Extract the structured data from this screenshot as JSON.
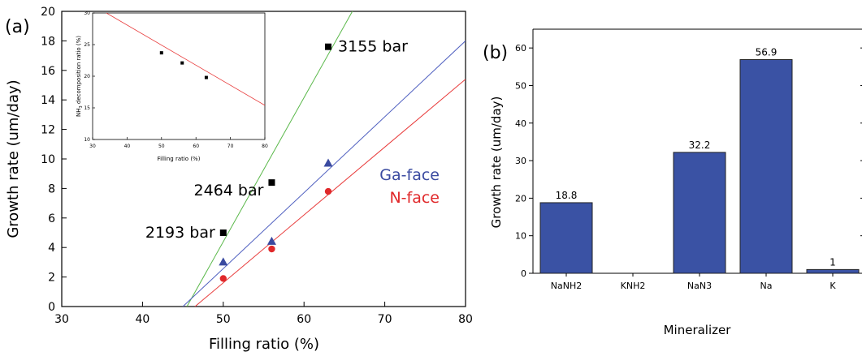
{
  "chart_data": [
    {
      "type": "scatter",
      "panel_label": "(a)",
      "xlabel": "Filling ratio (%)",
      "ylabel": "Growth rate (um/day)",
      "xlim": [
        30,
        80
      ],
      "ylim": [
        0,
        20
      ],
      "xticks": [
        "30",
        "40",
        "50",
        "60",
        "70",
        "80"
      ],
      "yticks": [
        "0",
        "2",
        "4",
        "6",
        "8",
        "10",
        "12",
        "14",
        "16",
        "18",
        "20"
      ],
      "series": [
        {
          "marker": "square",
          "color": "#000000",
          "x": [
            50,
            56,
            63
          ],
          "y": [
            5.0,
            8.4,
            17.6
          ]
        },
        {
          "name": "Ga-face",
          "marker": "triangle",
          "color": "#3a4aa0",
          "x": [
            50,
            56,
            63
          ],
          "y": [
            3.0,
            4.4,
            9.7
          ]
        },
        {
          "name": "N-face",
          "marker": "circle",
          "color": "#e0282a",
          "x": [
            50,
            56,
            63
          ],
          "y": [
            1.9,
            3.9,
            7.8
          ]
        }
      ],
      "fit_lines": [
        {
          "color": "#5ab84a",
          "p1": [
            45.5,
            0
          ],
          "p2": [
            66.5,
            20.5
          ]
        },
        {
          "color": "#5060c0",
          "p1": [
            45.0,
            0
          ],
          "p2": [
            80,
            18.0
          ]
        },
        {
          "color": "#e83a3a",
          "p1": [
            46.5,
            0
          ],
          "p2": [
            80,
            15.4
          ]
        }
      ],
      "annotations": [
        {
          "text": "3155 bar",
          "x": 63,
          "y": 17.6
        },
        {
          "text": "2464 bar",
          "x": 56,
          "y": 8.4
        },
        {
          "text": "2193 bar",
          "x": 50,
          "y": 5.0
        }
      ],
      "legend_labels": [
        {
          "text": "Ga-face",
          "color": "#3a4aa0"
        },
        {
          "text": "N-face",
          "color": "#e0282a"
        }
      ],
      "inset": {
        "type": "scatter",
        "xlabel": "Filling ratio (%)",
        "ylabel_pre": "NH",
        "ylabel_sub": "3",
        "ylabel_post": " decomposition ratio (%)",
        "xlim": [
          30,
          80
        ],
        "ylim": [
          10,
          30
        ],
        "xticks": [
          "30",
          "40",
          "50",
          "60",
          "70",
          "80"
        ],
        "yticks": [
          "10",
          "15",
          "20",
          "25",
          "30"
        ],
        "points": {
          "x": [
            50,
            56,
            63
          ],
          "y": [
            23.7,
            22.1,
            19.8
          ]
        },
        "fit_line": {
          "color": "#e83a3a",
          "p1": [
            34,
            30
          ],
          "p2": [
            80,
            15.4
          ]
        }
      }
    },
    {
      "type": "bar",
      "panel_label": "(b)",
      "xlabel": "Mineralizer",
      "ylabel": "Growth rate (um/day)",
      "ylim": [
        0,
        65
      ],
      "yticks": [
        "0",
        "10",
        "20",
        "30",
        "40",
        "50",
        "60"
      ],
      "bar_color": "#3a52a4",
      "categories": [
        "NaNH2",
        "KNH2",
        "NaN3",
        "Na",
        "K"
      ],
      "values": [
        18.8,
        0,
        32.2,
        56.9,
        1
      ],
      "value_labels": [
        "18.8",
        "",
        "32.2",
        "56.9",
        "1"
      ]
    }
  ]
}
